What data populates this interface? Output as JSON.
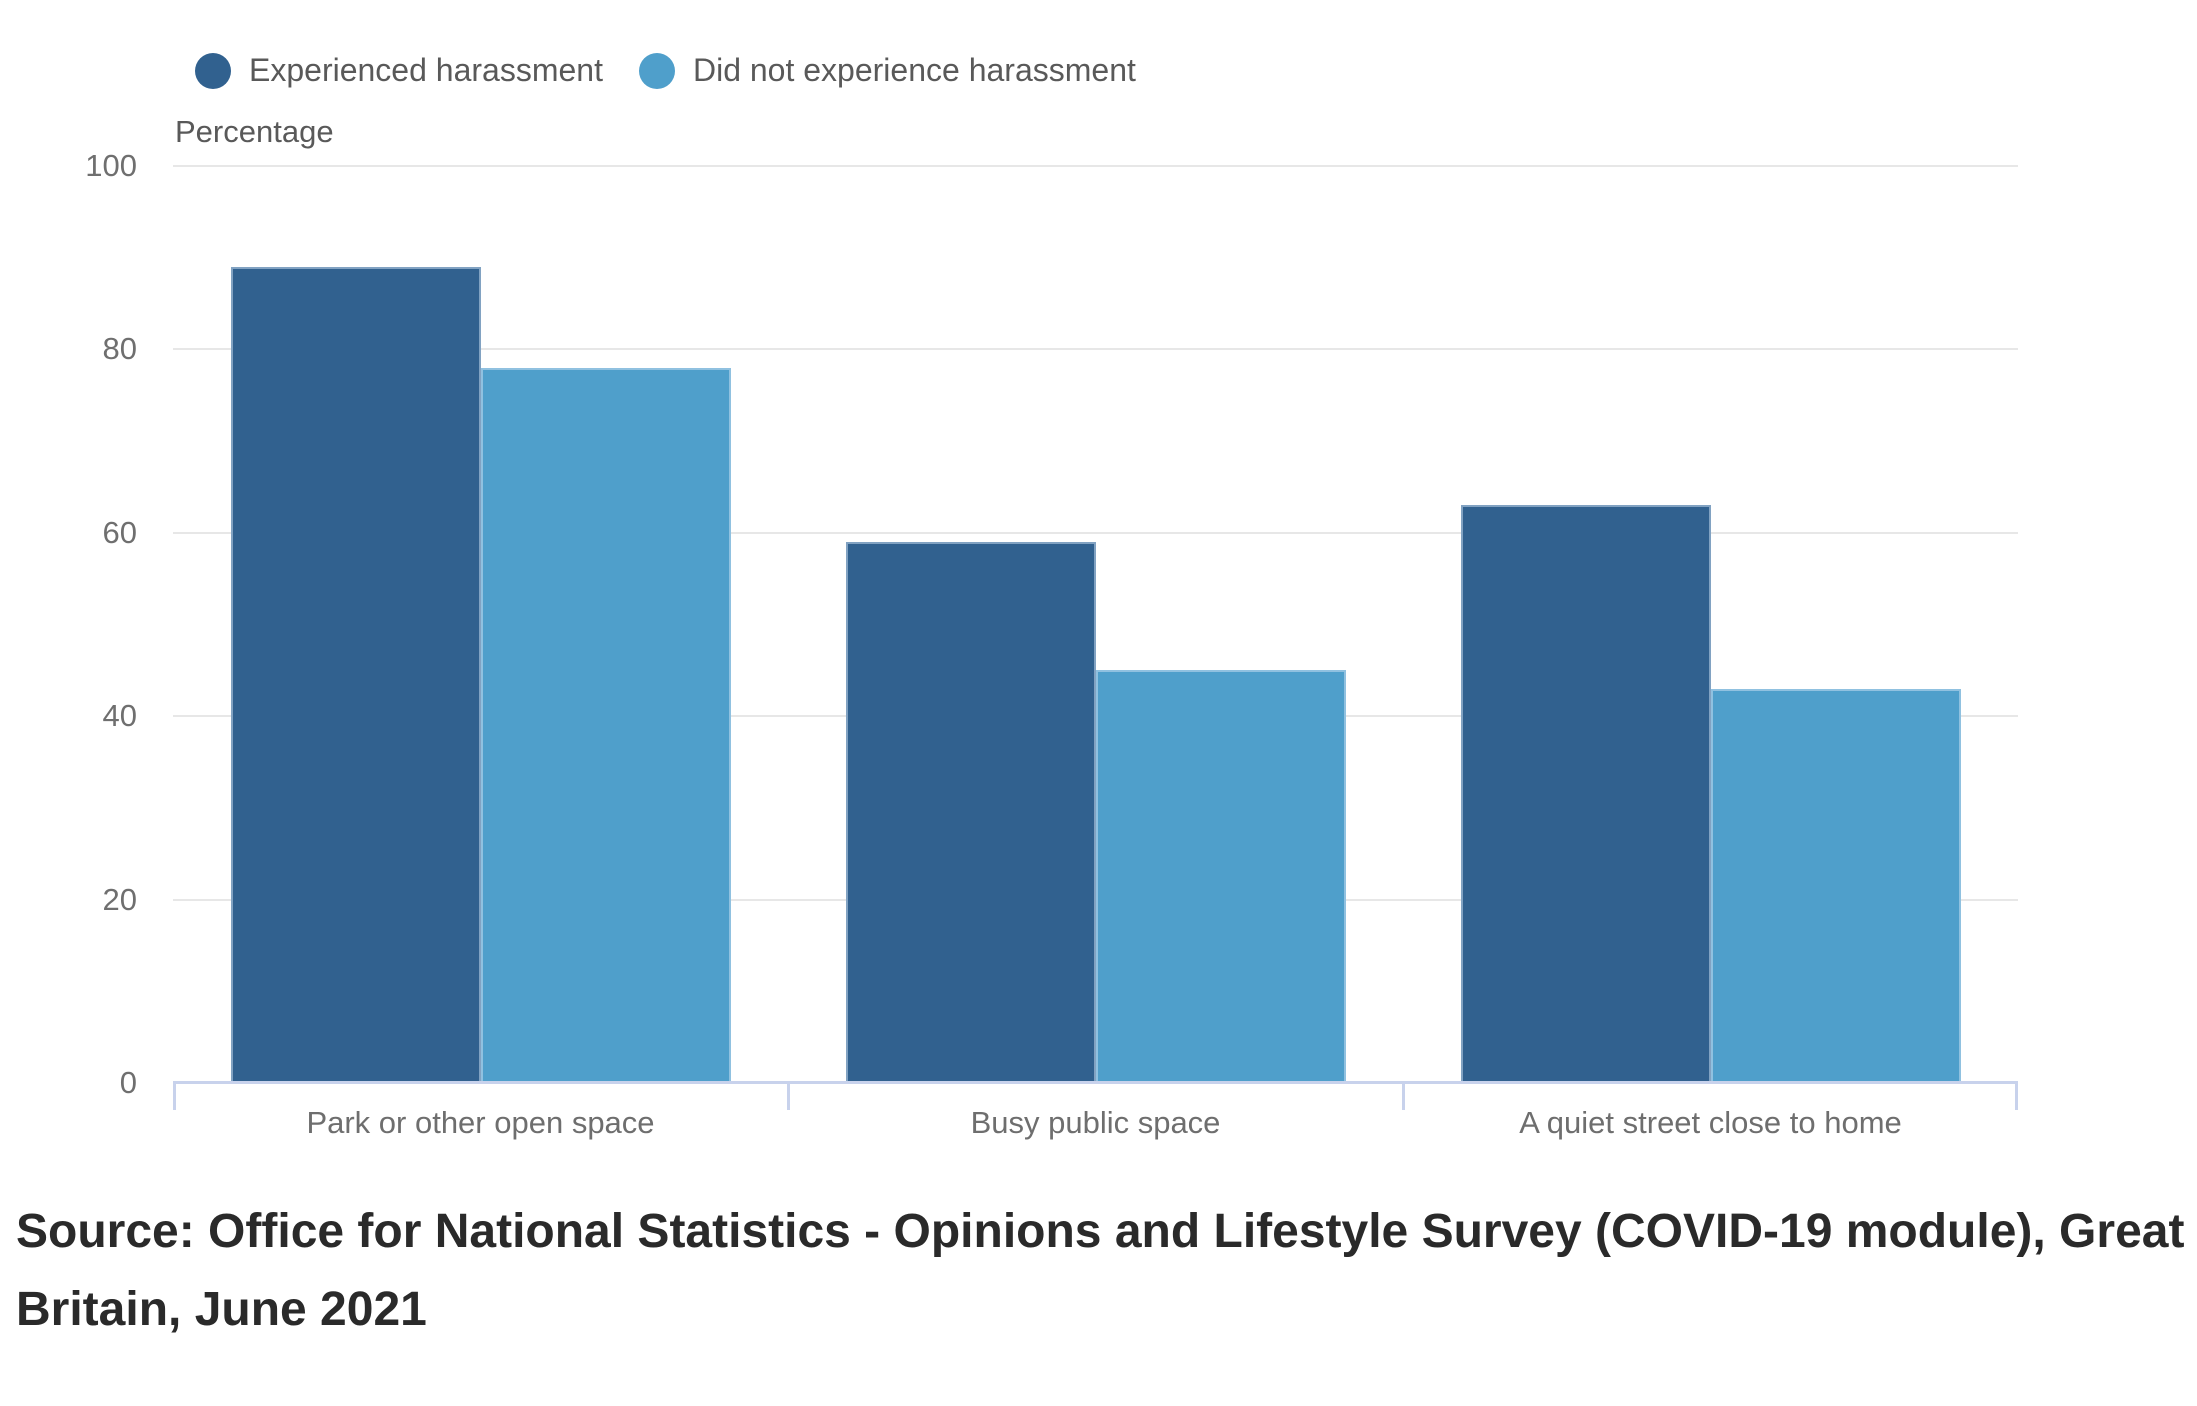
{
  "legend": {
    "items": [
      {
        "label": "Experienced harassment",
        "color": "#31618f"
      },
      {
        "label": "Did not experience harassment",
        "color": "#4f9fcb"
      }
    ]
  },
  "chart_data": {
    "type": "bar",
    "title": "",
    "categories": [
      "Park or other open space",
      "Busy public space",
      "A quiet street close to home"
    ],
    "series": [
      {
        "name": "Experienced harassment",
        "color": "#31618f",
        "values": [
          89,
          59,
          63
        ]
      },
      {
        "name": "Did not experience harassment",
        "color": "#4f9fcb",
        "values": [
          78,
          45,
          43
        ]
      }
    ],
    "xlabel": "",
    "ylabel": "Percentage",
    "yticks": [
      0,
      20,
      40,
      60,
      80,
      100
    ],
    "ylim": [
      0,
      100
    ],
    "grid": "horizontal",
    "legend_position": "top",
    "colors": {
      "gridline": "#e7e7e7",
      "axis_line": "#c8d2ec",
      "tick_label": "#6f6f6f",
      "category_label": "#6e6e6e",
      "legend_text": "#595959"
    }
  },
  "source": {
    "text": "Source: Office for National Statistics - Opinions and Lifestyle Survey (COVID-19 module), Great Britain, June 2021"
  }
}
